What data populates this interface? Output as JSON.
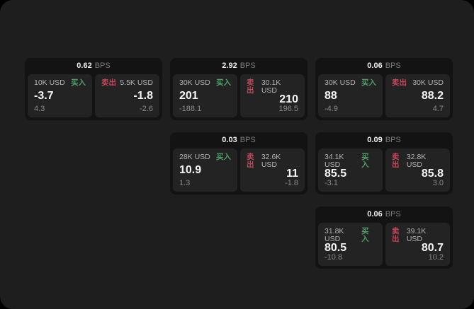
{
  "labels": {
    "bps_unit": "BPS",
    "buy": "买入",
    "sell": "卖出"
  },
  "colors": {
    "buy": "#4f9e6a",
    "sell": "#c0485c",
    "window_bg": "#1e1e1e",
    "card_bg": "#131313",
    "panel_bg": "#232323"
  },
  "cards": [
    {
      "bps": "0.62",
      "row": 1,
      "col": 1,
      "buy": {
        "amount": "10K USD",
        "side": "买入",
        "value": "-3.7",
        "delta": "4.3"
      },
      "sell": {
        "amount": "5.5K USD",
        "side": "卖出",
        "value": "-1.8",
        "delta": "-2.6"
      }
    },
    {
      "bps": "2.92",
      "row": 1,
      "col": 2,
      "buy": {
        "amount": "30K USD",
        "side": "买入",
        "value": "201",
        "delta": "-188.1"
      },
      "sell": {
        "amount": "30.1K USD",
        "side": "卖出",
        "value": "210",
        "delta": "196.5"
      }
    },
    {
      "bps": "0.06",
      "row": 1,
      "col": 3,
      "buy": {
        "amount": "30K USD",
        "side": "买入",
        "value": "88",
        "delta": "-4.9"
      },
      "sell": {
        "amount": "30K USD",
        "side": "卖出",
        "value": "88.2",
        "delta": "4.7"
      }
    },
    {
      "bps": "0.03",
      "row": 2,
      "col": 2,
      "buy": {
        "amount": "28K USD",
        "side": "买入",
        "value": "10.9",
        "delta": "1.3"
      },
      "sell": {
        "amount": "32.6K USD",
        "side": "卖出",
        "value": "11",
        "delta": "-1.8"
      }
    },
    {
      "bps": "0.09",
      "row": 2,
      "col": 3,
      "buy": {
        "amount": "34.1K USD",
        "side": "买入",
        "value": "85.5",
        "delta": "-3.1"
      },
      "sell": {
        "amount": "32.8K USD",
        "side": "卖出",
        "value": "85.8",
        "delta": "3.0"
      }
    },
    {
      "bps": "0.06",
      "row": 3,
      "col": 3,
      "buy": {
        "amount": "31.8K USD",
        "side": "买入",
        "value": "80.5",
        "delta": "-10.8"
      },
      "sell": {
        "amount": "39.1K USD",
        "side": "卖出",
        "value": "80.7",
        "delta": "10.2"
      }
    }
  ]
}
